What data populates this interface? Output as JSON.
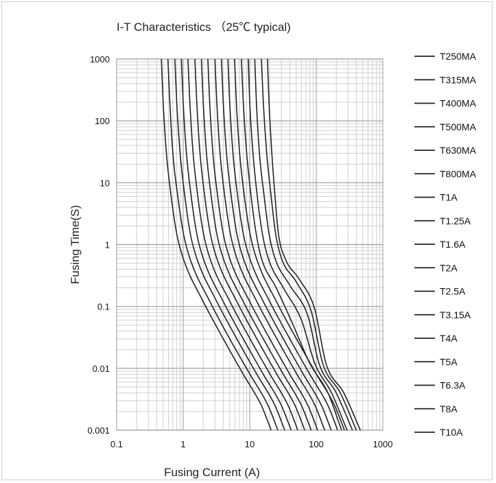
{
  "chart_data": {
    "type": "line",
    "title": "I-T Characteristics  （25℃ typical)",
    "xlabel": "Fusing Current (A)",
    "ylabel": "Fusing Time(S)",
    "x_scale": "log",
    "y_scale": "log",
    "xlim": [
      0.1,
      1000
    ],
    "ylim": [
      0.001,
      1000
    ],
    "x_ticks": [
      "0.1",
      "1",
      "10",
      "100",
      "1000"
    ],
    "y_ticks": [
      "0.001",
      "0.01",
      "0.1",
      "1",
      "10",
      "100",
      "1000"
    ],
    "grid": true,
    "legend_position": "right",
    "series": [
      {
        "name": "T250MA",
        "points": [
          [
            0.47,
            1000
          ],
          [
            0.5,
            200
          ],
          [
            0.56,
            30
          ],
          [
            0.66,
            6
          ],
          [
            0.8,
            1.5
          ],
          [
            1.0,
            0.6
          ],
          [
            2.0,
            0.12
          ],
          [
            4.0,
            0.03
          ],
          [
            8.0,
            0.008
          ],
          [
            15,
            0.0025
          ],
          [
            21,
            0.001
          ]
        ]
      },
      {
        "name": "T315MA",
        "points": [
          [
            0.59,
            1000
          ],
          [
            0.63,
            200
          ],
          [
            0.7,
            30
          ],
          [
            0.83,
            6
          ],
          [
            1.01,
            1.5
          ],
          [
            1.26,
            0.6
          ],
          [
            2.52,
            0.12
          ],
          [
            5.0,
            0.03
          ],
          [
            10.1,
            0.008
          ],
          [
            18.9,
            0.0025
          ],
          [
            26.5,
            0.001
          ]
        ]
      },
      {
        "name": "T400MA",
        "points": [
          [
            0.75,
            1000
          ],
          [
            0.8,
            200
          ],
          [
            0.9,
            30
          ],
          [
            1.06,
            6
          ],
          [
            1.28,
            1.5
          ],
          [
            1.6,
            0.6
          ],
          [
            3.2,
            0.12
          ],
          [
            6.4,
            0.03
          ],
          [
            12.8,
            0.008
          ],
          [
            24,
            0.0025
          ],
          [
            33.6,
            0.001
          ]
        ]
      },
      {
        "name": "T500MA",
        "points": [
          [
            0.94,
            1000
          ],
          [
            1.0,
            200
          ],
          [
            1.12,
            30
          ],
          [
            1.32,
            6
          ],
          [
            1.6,
            1.5
          ],
          [
            2.0,
            0.6
          ],
          [
            4.0,
            0.12
          ],
          [
            8.0,
            0.03
          ],
          [
            16,
            0.008
          ],
          [
            30,
            0.0025
          ],
          [
            42,
            0.001
          ]
        ]
      },
      {
        "name": "T630MA",
        "points": [
          [
            1.18,
            1000
          ],
          [
            1.26,
            200
          ],
          [
            1.41,
            30
          ],
          [
            1.66,
            6
          ],
          [
            2.02,
            1.5
          ],
          [
            2.52,
            0.6
          ],
          [
            5.04,
            0.12
          ],
          [
            10.1,
            0.03
          ],
          [
            20.2,
            0.008
          ],
          [
            37.8,
            0.0025
          ],
          [
            52.9,
            0.001
          ]
        ]
      },
      {
        "name": "T800MA",
        "points": [
          [
            1.5,
            1000
          ],
          [
            1.6,
            200
          ],
          [
            1.79,
            30
          ],
          [
            2.11,
            6
          ],
          [
            2.56,
            1.5
          ],
          [
            3.2,
            0.6
          ],
          [
            6.4,
            0.12
          ],
          [
            12.8,
            0.03
          ],
          [
            25.6,
            0.008
          ],
          [
            48,
            0.0025
          ],
          [
            67.2,
            0.001
          ]
        ]
      },
      {
        "name": "T1A",
        "points": [
          [
            1.88,
            1000
          ],
          [
            2.0,
            200
          ],
          [
            2.24,
            30
          ],
          [
            2.64,
            6
          ],
          [
            3.2,
            1.5
          ],
          [
            4.0,
            0.6
          ],
          [
            8.0,
            0.12
          ],
          [
            16,
            0.03
          ],
          [
            32,
            0.008
          ],
          [
            60,
            0.0025
          ],
          [
            84,
            0.001
          ]
        ]
      },
      {
        "name": "T1.25A",
        "points": [
          [
            2.35,
            1000
          ],
          [
            2.5,
            200
          ],
          [
            2.8,
            30
          ],
          [
            3.3,
            6
          ],
          [
            4.0,
            1.5
          ],
          [
            5.0,
            0.6
          ],
          [
            10,
            0.12
          ],
          [
            20,
            0.03
          ],
          [
            40,
            0.008
          ],
          [
            75,
            0.0025
          ],
          [
            105,
            0.001
          ]
        ]
      },
      {
        "name": "T1.6A",
        "points": [
          [
            3.0,
            1000
          ],
          [
            3.2,
            200
          ],
          [
            3.58,
            30
          ],
          [
            4.22,
            6
          ],
          [
            5.12,
            1.5
          ],
          [
            6.4,
            0.6
          ],
          [
            12.8,
            0.12
          ],
          [
            25.6,
            0.03
          ],
          [
            51.2,
            0.008
          ],
          [
            96,
            0.0025
          ],
          [
            134,
            0.001
          ]
        ]
      },
      {
        "name": "T2A",
        "points": [
          [
            3.76,
            1000
          ],
          [
            4.0,
            200
          ],
          [
            4.48,
            30
          ],
          [
            5.28,
            6
          ],
          [
            6.4,
            1.5
          ],
          [
            8.0,
            0.6
          ],
          [
            16,
            0.12
          ],
          [
            32,
            0.03
          ],
          [
            64,
            0.008
          ],
          [
            120,
            0.0025
          ],
          [
            168,
            0.001
          ]
        ]
      },
      {
        "name": "T2.5A",
        "points": [
          [
            4.7,
            1000
          ],
          [
            5.0,
            200
          ],
          [
            5.6,
            30
          ],
          [
            6.6,
            6
          ],
          [
            8.0,
            1.5
          ],
          [
            10,
            0.6
          ],
          [
            20,
            0.12
          ],
          [
            40,
            0.03
          ],
          [
            80,
            0.008
          ],
          [
            150,
            0.0025
          ],
          [
            210,
            0.001
          ]
        ]
      },
      {
        "name": "T3.15A",
        "points": [
          [
            5.92,
            1000
          ],
          [
            6.3,
            200
          ],
          [
            7.06,
            30
          ],
          [
            8.32,
            6
          ],
          [
            10.1,
            1.5
          ],
          [
            12.6,
            0.6
          ],
          [
            25.2,
            0.12
          ],
          [
            50.4,
            0.03
          ],
          [
            100.8,
            0.008
          ],
          [
            189,
            0.0025
          ],
          [
            265,
            0.001
          ]
        ]
      },
      {
        "name": "T4A",
        "points": [
          [
            7.5,
            1000
          ],
          [
            8.0,
            200
          ],
          [
            9.0,
            30
          ],
          [
            10.5,
            6
          ],
          [
            12.5,
            1.5
          ],
          [
            15,
            0.6
          ],
          [
            25,
            0.2
          ],
          [
            45,
            0.05
          ],
          [
            80,
            0.012
          ],
          [
            150,
            0.004
          ],
          [
            240,
            0.001
          ]
        ]
      },
      {
        "name": "T5A",
        "points": [
          [
            9.5,
            1000
          ],
          [
            10,
            200
          ],
          [
            11.2,
            30
          ],
          [
            13,
            6
          ],
          [
            15.5,
            1.5
          ],
          [
            19,
            0.6
          ],
          [
            32,
            0.2
          ],
          [
            60,
            0.06
          ],
          [
            95,
            0.012
          ],
          [
            170,
            0.004
          ],
          [
            290,
            0.001
          ]
        ]
      },
      {
        "name": "T6.3A",
        "points": [
          [
            11.9,
            1000
          ],
          [
            12.6,
            200
          ],
          [
            14,
            30
          ],
          [
            16.5,
            6
          ],
          [
            19.5,
            1.5
          ],
          [
            24,
            0.6
          ],
          [
            40,
            0.22
          ],
          [
            75,
            0.07
          ],
          [
            110,
            0.012
          ],
          [
            200,
            0.004
          ],
          [
            350,
            0.001
          ]
        ]
      },
      {
        "name": "T8A",
        "points": [
          [
            15,
            1000
          ],
          [
            16,
            200
          ],
          [
            18,
            30
          ],
          [
            21,
            6
          ],
          [
            24.5,
            1.5
          ],
          [
            30,
            0.6
          ],
          [
            50,
            0.25
          ],
          [
            85,
            0.08
          ],
          [
            125,
            0.012
          ],
          [
            230,
            0.004
          ],
          [
            400,
            0.001
          ]
        ]
      },
      {
        "name": "T10A",
        "points": [
          [
            18.5,
            1000
          ],
          [
            19.5,
            200
          ],
          [
            21.5,
            30
          ],
          [
            24,
            6
          ],
          [
            27,
            1.5
          ],
          [
            34,
            0.6
          ],
          [
            55,
            0.28
          ],
          [
            95,
            0.09
          ],
          [
            140,
            0.012
          ],
          [
            260,
            0.004
          ],
          [
            460,
            0.001
          ]
        ]
      }
    ]
  }
}
